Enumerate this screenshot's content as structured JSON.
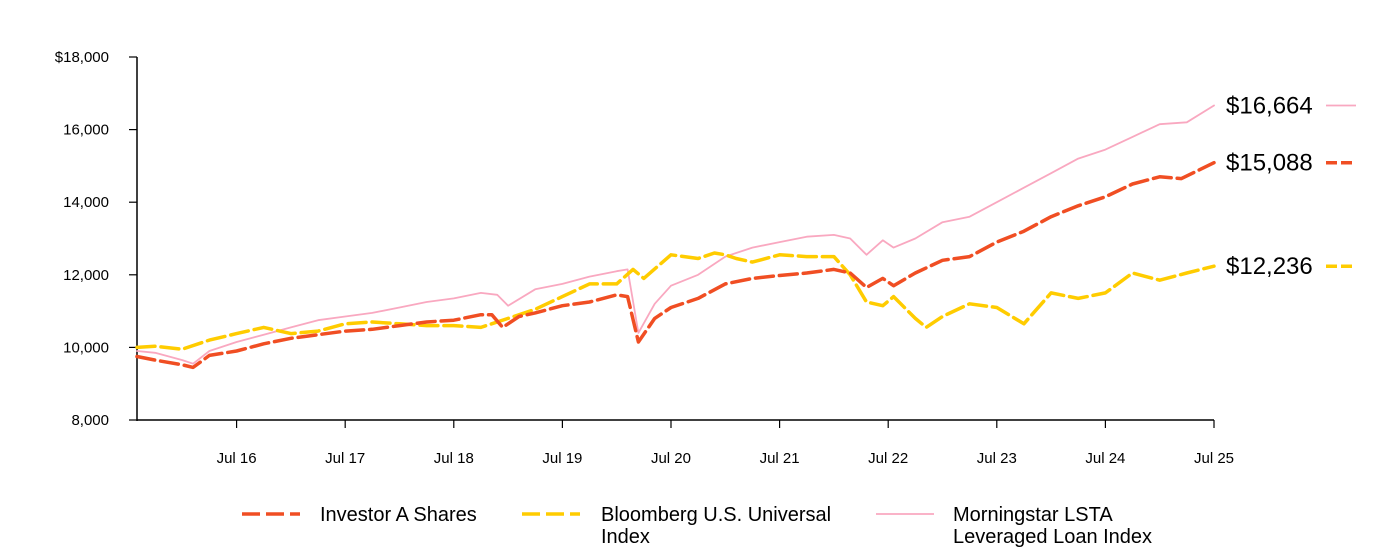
{
  "chart_data": {
    "type": "line",
    "title": "",
    "xlabel": "",
    "ylabel": "",
    "ylim": [
      8000,
      18000
    ],
    "y_ticks": [
      {
        "value": 8000,
        "label": "8,000"
      },
      {
        "value": 10000,
        "label": "10,000"
      },
      {
        "value": 12000,
        "label": "12,000"
      },
      {
        "value": 14000,
        "label": "14,000"
      },
      {
        "value": 16000,
        "label": "16,000"
      },
      {
        "value": 18000,
        "label": "$18,000"
      }
    ],
    "x_range": [
      2015.583,
      2025.5
    ],
    "x_ticks": [
      {
        "value": 2016.5,
        "label": "Jul 16"
      },
      {
        "value": 2017.5,
        "label": "Jul 17"
      },
      {
        "value": 2018.5,
        "label": "Jul 18"
      },
      {
        "value": 2019.5,
        "label": "Jul 19"
      },
      {
        "value": 2020.5,
        "label": "Jul 20"
      },
      {
        "value": 2021.5,
        "label": "Jul 21"
      },
      {
        "value": 2022.5,
        "label": "Jul 22"
      },
      {
        "value": 2023.5,
        "label": "Jul 23"
      },
      {
        "value": 2024.5,
        "label": "Jul 24"
      },
      {
        "value": 2025.5,
        "label": "Jul 25"
      }
    ],
    "legend_placement": "bottom",
    "series": [
      {
        "name": "Investor A Shares",
        "color": "#f04e23",
        "style": "dashed",
        "end_label": "$15,088",
        "points": [
          [
            2015.583,
            9750
          ],
          [
            2015.75,
            9650
          ],
          [
            2016.0,
            9520
          ],
          [
            2016.1,
            9450
          ],
          [
            2016.25,
            9780
          ],
          [
            2016.5,
            9900
          ],
          [
            2016.75,
            10100
          ],
          [
            2017.0,
            10250
          ],
          [
            2017.25,
            10350
          ],
          [
            2017.5,
            10450
          ],
          [
            2017.75,
            10500
          ],
          [
            2018.0,
            10600
          ],
          [
            2018.25,
            10700
          ],
          [
            2018.5,
            10750
          ],
          [
            2018.75,
            10900
          ],
          [
            2018.85,
            10900
          ],
          [
            2018.95,
            10550
          ],
          [
            2019.1,
            10850
          ],
          [
            2019.25,
            10950
          ],
          [
            2019.5,
            11150
          ],
          [
            2019.75,
            11250
          ],
          [
            2020.0,
            11450
          ],
          [
            2020.1,
            11400
          ],
          [
            2020.2,
            10150
          ],
          [
            2020.35,
            10800
          ],
          [
            2020.5,
            11100
          ],
          [
            2020.75,
            11350
          ],
          [
            2021.0,
            11750
          ],
          [
            2021.25,
            11900
          ],
          [
            2021.5,
            11980
          ],
          [
            2021.75,
            12050
          ],
          [
            2022.0,
            12150
          ],
          [
            2022.15,
            12050
          ],
          [
            2022.3,
            11650
          ],
          [
            2022.45,
            11900
          ],
          [
            2022.55,
            11700
          ],
          [
            2022.75,
            12050
          ],
          [
            2023.0,
            12400
          ],
          [
            2023.25,
            12500
          ],
          [
            2023.5,
            12900
          ],
          [
            2023.75,
            13200
          ],
          [
            2024.0,
            13600
          ],
          [
            2024.25,
            13900
          ],
          [
            2024.5,
            14150
          ],
          [
            2024.75,
            14500
          ],
          [
            2025.0,
            14700
          ],
          [
            2025.2,
            14650
          ],
          [
            2025.5,
            15088
          ]
        ]
      },
      {
        "name": "Bloomberg U.S. Universal Index",
        "color": "#ffcc00",
        "style": "dashed",
        "end_label": "$12,236",
        "points": [
          [
            2015.583,
            10000
          ],
          [
            2015.75,
            10030
          ],
          [
            2016.0,
            9950
          ],
          [
            2016.25,
            10200
          ],
          [
            2016.5,
            10380
          ],
          [
            2016.75,
            10550
          ],
          [
            2017.0,
            10380
          ],
          [
            2017.25,
            10450
          ],
          [
            2017.5,
            10650
          ],
          [
            2017.75,
            10700
          ],
          [
            2018.0,
            10650
          ],
          [
            2018.25,
            10600
          ],
          [
            2018.5,
            10600
          ],
          [
            2018.75,
            10550
          ],
          [
            2019.0,
            10800
          ],
          [
            2019.25,
            11050
          ],
          [
            2019.5,
            11400
          ],
          [
            2019.75,
            11750
          ],
          [
            2020.0,
            11750
          ],
          [
            2020.15,
            12150
          ],
          [
            2020.25,
            11900
          ],
          [
            2020.5,
            12550
          ],
          [
            2020.75,
            12450
          ],
          [
            2020.9,
            12600
          ],
          [
            2021.0,
            12550
          ],
          [
            2021.1,
            12450
          ],
          [
            2021.25,
            12350
          ],
          [
            2021.5,
            12550
          ],
          [
            2021.75,
            12500
          ],
          [
            2022.0,
            12500
          ],
          [
            2022.15,
            12000
          ],
          [
            2022.3,
            11250
          ],
          [
            2022.45,
            11150
          ],
          [
            2022.55,
            11400
          ],
          [
            2022.75,
            10800
          ],
          [
            2022.85,
            10550
          ],
          [
            2023.0,
            10850
          ],
          [
            2023.25,
            11200
          ],
          [
            2023.5,
            11100
          ],
          [
            2023.75,
            10650
          ],
          [
            2024.0,
            11500
          ],
          [
            2024.25,
            11350
          ],
          [
            2024.5,
            11500
          ],
          [
            2024.75,
            12050
          ],
          [
            2025.0,
            11850
          ],
          [
            2025.25,
            12050
          ],
          [
            2025.5,
            12236
          ]
        ]
      },
      {
        "name": "Morningstar LSTA Leveraged Loan Index",
        "color": "#f9a8c0",
        "style": "solid",
        "end_label": "$16,664",
        "points": [
          [
            2015.583,
            9900
          ],
          [
            2015.75,
            9850
          ],
          [
            2016.0,
            9650
          ],
          [
            2016.1,
            9550
          ],
          [
            2016.25,
            9900
          ],
          [
            2016.5,
            10150
          ],
          [
            2016.75,
            10350
          ],
          [
            2017.0,
            10550
          ],
          [
            2017.25,
            10750
          ],
          [
            2017.5,
            10850
          ],
          [
            2017.75,
            10950
          ],
          [
            2018.0,
            11100
          ],
          [
            2018.25,
            11250
          ],
          [
            2018.5,
            11350
          ],
          [
            2018.75,
            11500
          ],
          [
            2018.9,
            11450
          ],
          [
            2019.0,
            11150
          ],
          [
            2019.25,
            11600
          ],
          [
            2019.5,
            11750
          ],
          [
            2019.75,
            11950
          ],
          [
            2020.0,
            12100
          ],
          [
            2020.1,
            12150
          ],
          [
            2020.2,
            10400
          ],
          [
            2020.35,
            11200
          ],
          [
            2020.5,
            11700
          ],
          [
            2020.75,
            12000
          ],
          [
            2021.0,
            12500
          ],
          [
            2021.25,
            12750
          ],
          [
            2021.5,
            12900
          ],
          [
            2021.75,
            13050
          ],
          [
            2022.0,
            13100
          ],
          [
            2022.15,
            13000
          ],
          [
            2022.3,
            12550
          ],
          [
            2022.45,
            12950
          ],
          [
            2022.55,
            12750
          ],
          [
            2022.75,
            13000
          ],
          [
            2023.0,
            13450
          ],
          [
            2023.25,
            13600
          ],
          [
            2023.5,
            14000
          ],
          [
            2023.75,
            14400
          ],
          [
            2024.0,
            14800
          ],
          [
            2024.25,
            15200
          ],
          [
            2024.5,
            15450
          ],
          [
            2024.75,
            15800
          ],
          [
            2025.0,
            16150
          ],
          [
            2025.25,
            16200
          ],
          [
            2025.5,
            16664
          ]
        ]
      }
    ]
  },
  "legend": [
    {
      "lines": [
        "Investor A Shares"
      ]
    },
    {
      "lines": [
        "Bloomberg U.S. Universal",
        "Index"
      ]
    },
    {
      "lines": [
        "Morningstar LSTA",
        "Leveraged Loan Index"
      ]
    }
  ]
}
